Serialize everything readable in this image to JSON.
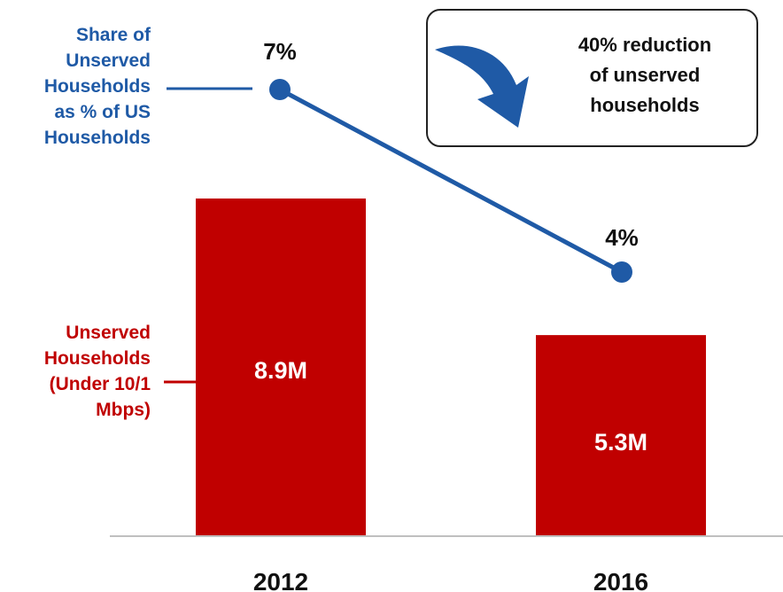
{
  "colors": {
    "bar": "#c00000",
    "line": "#1f5aa6",
    "text": "#111111",
    "axis": "#bfbfbf"
  },
  "labels": {
    "line_series": "Share of Unserved Households as % of US Households",
    "line_series_lines": [
      "Share of",
      "Unserved",
      "Households",
      "as % of US",
      "Households"
    ],
    "bar_series": "Unserved Households (Under 10/1 Mbps)",
    "bar_series_lines": [
      "Unserved",
      "Households",
      "(Under 10/1",
      "Mbps)"
    ]
  },
  "callout": {
    "icon": "curved-down-arrow-icon",
    "text_lines": [
      "40% reduction",
      "of unserved",
      "households"
    ]
  },
  "chart_data": {
    "type": "bar",
    "categories": [
      "2012",
      "2016"
    ],
    "series": [
      {
        "name": "Unserved Households (Under 10/1 Mbps)",
        "type": "bar",
        "values": [
          8.9,
          5.3
        ],
        "value_labels": [
          "8.9M",
          "5.3M"
        ],
        "unit": "M"
      },
      {
        "name": "Share of Unserved Households as % of US Households",
        "type": "line",
        "values": [
          7,
          4
        ],
        "value_labels": [
          "7%",
          "4%"
        ],
        "unit": "%"
      }
    ],
    "annotation": "40% reduction of unserved households",
    "grid": false
  }
}
